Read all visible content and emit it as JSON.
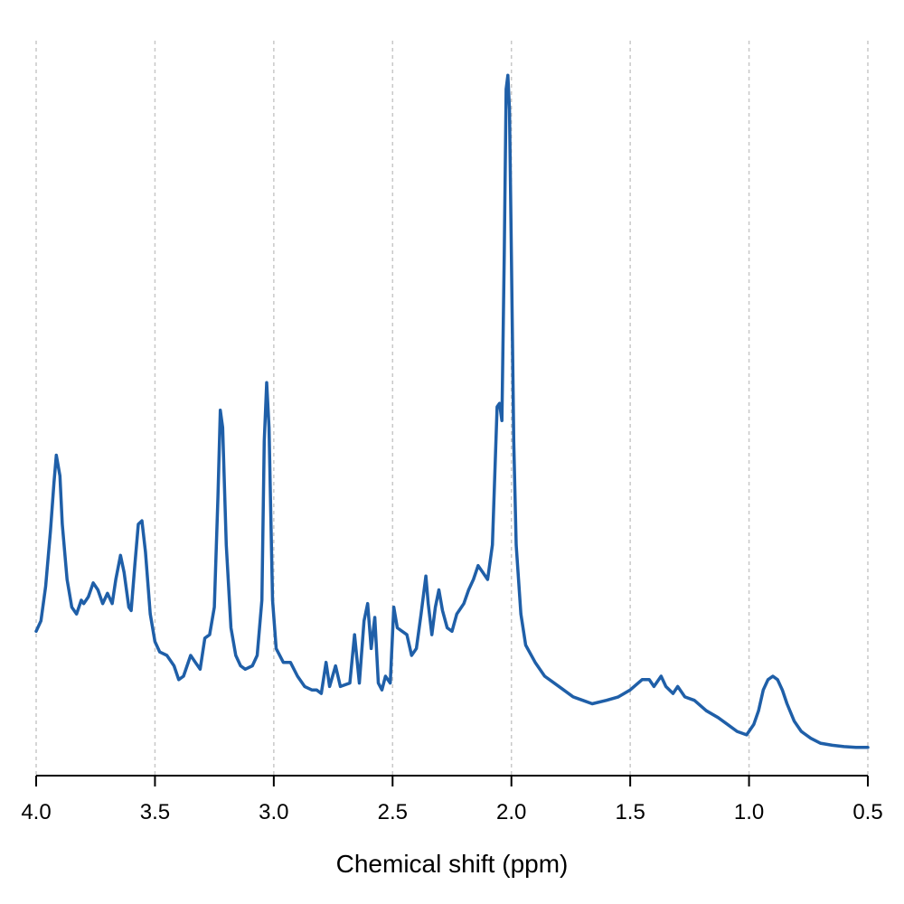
{
  "chart_data": {
    "type": "line",
    "title": "",
    "xlabel": "Chemical shift (ppm)",
    "ylabel": "",
    "xlim": [
      4.0,
      0.5
    ],
    "x_reversed": true,
    "y_axis_visible": false,
    "ylim": [
      0,
      1.0
    ],
    "xticks": [
      4.0,
      3.5,
      3.0,
      2.5,
      2.0,
      1.5,
      1.0,
      0.5
    ],
    "xtick_labels": [
      "4.0",
      "3.5",
      "3.0",
      "2.5",
      "2.0",
      "1.5",
      "1.0",
      "0.5"
    ],
    "grid": "vertical dashed at x ticks",
    "legend": "none",
    "series": [
      {
        "color": "#1f5fa8",
        "points": [
          [
            4.0,
            0.175
          ],
          [
            3.98,
            0.19
          ],
          [
            3.96,
            0.24
          ],
          [
            3.94,
            0.32
          ],
          [
            3.925,
            0.39
          ],
          [
            3.915,
            0.43
          ],
          [
            3.9,
            0.4
          ],
          [
            3.89,
            0.33
          ],
          [
            3.87,
            0.25
          ],
          [
            3.85,
            0.21
          ],
          [
            3.83,
            0.2
          ],
          [
            3.81,
            0.22
          ],
          [
            3.8,
            0.215
          ],
          [
            3.78,
            0.225
          ],
          [
            3.76,
            0.245
          ],
          [
            3.74,
            0.235
          ],
          [
            3.72,
            0.215
          ],
          [
            3.7,
            0.23
          ],
          [
            3.68,
            0.215
          ],
          [
            3.665,
            0.25
          ],
          [
            3.645,
            0.285
          ],
          [
            3.63,
            0.26
          ],
          [
            3.61,
            0.21
          ],
          [
            3.6,
            0.205
          ],
          [
            3.585,
            0.27
          ],
          [
            3.57,
            0.33
          ],
          [
            3.555,
            0.335
          ],
          [
            3.54,
            0.29
          ],
          [
            3.52,
            0.2
          ],
          [
            3.5,
            0.16
          ],
          [
            3.48,
            0.145
          ],
          [
            3.45,
            0.14
          ],
          [
            3.42,
            0.125
          ],
          [
            3.4,
            0.105
          ],
          [
            3.38,
            0.11
          ],
          [
            3.35,
            0.14
          ],
          [
            3.33,
            0.13
          ],
          [
            3.31,
            0.12
          ],
          [
            3.29,
            0.165
          ],
          [
            3.27,
            0.17
          ],
          [
            3.25,
            0.21
          ],
          [
            3.235,
            0.37
          ],
          [
            3.225,
            0.495
          ],
          [
            3.215,
            0.47
          ],
          [
            3.2,
            0.3
          ],
          [
            3.18,
            0.18
          ],
          [
            3.16,
            0.14
          ],
          [
            3.14,
            0.125
          ],
          [
            3.12,
            0.12
          ],
          [
            3.09,
            0.125
          ],
          [
            3.07,
            0.14
          ],
          [
            3.05,
            0.22
          ],
          [
            3.04,
            0.45
          ],
          [
            3.03,
            0.535
          ],
          [
            3.02,
            0.47
          ],
          [
            3.005,
            0.22
          ],
          [
            2.99,
            0.15
          ],
          [
            2.96,
            0.13
          ],
          [
            2.93,
            0.13
          ],
          [
            2.9,
            0.11
          ],
          [
            2.87,
            0.095
          ],
          [
            2.84,
            0.09
          ],
          [
            2.82,
            0.09
          ],
          [
            2.8,
            0.085
          ],
          [
            2.78,
            0.13
          ],
          [
            2.765,
            0.095
          ],
          [
            2.74,
            0.125
          ],
          [
            2.72,
            0.095
          ],
          [
            2.68,
            0.1
          ],
          [
            2.66,
            0.17
          ],
          [
            2.64,
            0.1
          ],
          [
            2.62,
            0.19
          ],
          [
            2.605,
            0.215
          ],
          [
            2.59,
            0.15
          ],
          [
            2.575,
            0.195
          ],
          [
            2.56,
            0.1
          ],
          [
            2.545,
            0.09
          ],
          [
            2.53,
            0.11
          ],
          [
            2.51,
            0.1
          ],
          [
            2.495,
            0.21
          ],
          [
            2.48,
            0.18
          ],
          [
            2.46,
            0.175
          ],
          [
            2.44,
            0.17
          ],
          [
            2.42,
            0.14
          ],
          [
            2.4,
            0.15
          ],
          [
            2.38,
            0.2
          ],
          [
            2.36,
            0.255
          ],
          [
            2.35,
            0.215
          ],
          [
            2.335,
            0.17
          ],
          [
            2.32,
            0.21
          ],
          [
            2.305,
            0.235
          ],
          [
            2.29,
            0.205
          ],
          [
            2.27,
            0.18
          ],
          [
            2.25,
            0.175
          ],
          [
            2.23,
            0.2
          ],
          [
            2.2,
            0.215
          ],
          [
            2.18,
            0.235
          ],
          [
            2.16,
            0.25
          ],
          [
            2.14,
            0.27
          ],
          [
            2.12,
            0.26
          ],
          [
            2.1,
            0.25
          ],
          [
            2.08,
            0.3
          ],
          [
            2.06,
            0.5
          ],
          [
            2.05,
            0.505
          ],
          [
            2.04,
            0.48
          ],
          [
            2.03,
            0.72
          ],
          [
            2.022,
            0.96
          ],
          [
            2.015,
            0.98
          ],
          [
            2.008,
            0.93
          ],
          [
            2.0,
            0.72
          ],
          [
            1.99,
            0.45
          ],
          [
            1.98,
            0.3
          ],
          [
            1.96,
            0.2
          ],
          [
            1.94,
            0.155
          ],
          [
            1.9,
            0.13
          ],
          [
            1.86,
            0.11
          ],
          [
            1.82,
            0.1
          ],
          [
            1.78,
            0.09
          ],
          [
            1.74,
            0.08
          ],
          [
            1.7,
            0.075
          ],
          [
            1.66,
            0.07
          ],
          [
            1.6,
            0.075
          ],
          [
            1.55,
            0.08
          ],
          [
            1.5,
            0.09
          ],
          [
            1.45,
            0.105
          ],
          [
            1.42,
            0.105
          ],
          [
            1.4,
            0.095
          ],
          [
            1.37,
            0.11
          ],
          [
            1.35,
            0.095
          ],
          [
            1.32,
            0.085
          ],
          [
            1.3,
            0.095
          ],
          [
            1.27,
            0.08
          ],
          [
            1.23,
            0.075
          ],
          [
            1.18,
            0.06
          ],
          [
            1.13,
            0.05
          ],
          [
            1.09,
            0.04
          ],
          [
            1.05,
            0.03
          ],
          [
            1.01,
            0.025
          ],
          [
            0.98,
            0.04
          ],
          [
            0.96,
            0.06
          ],
          [
            0.94,
            0.09
          ],
          [
            0.92,
            0.105
          ],
          [
            0.9,
            0.11
          ],
          [
            0.88,
            0.105
          ],
          [
            0.86,
            0.09
          ],
          [
            0.84,
            0.07
          ],
          [
            0.81,
            0.045
          ],
          [
            0.78,
            0.03
          ],
          [
            0.74,
            0.02
          ],
          [
            0.7,
            0.013
          ],
          [
            0.65,
            0.01
          ],
          [
            0.6,
            0.008
          ],
          [
            0.55,
            0.007
          ],
          [
            0.5,
            0.007
          ]
        ]
      }
    ]
  }
}
